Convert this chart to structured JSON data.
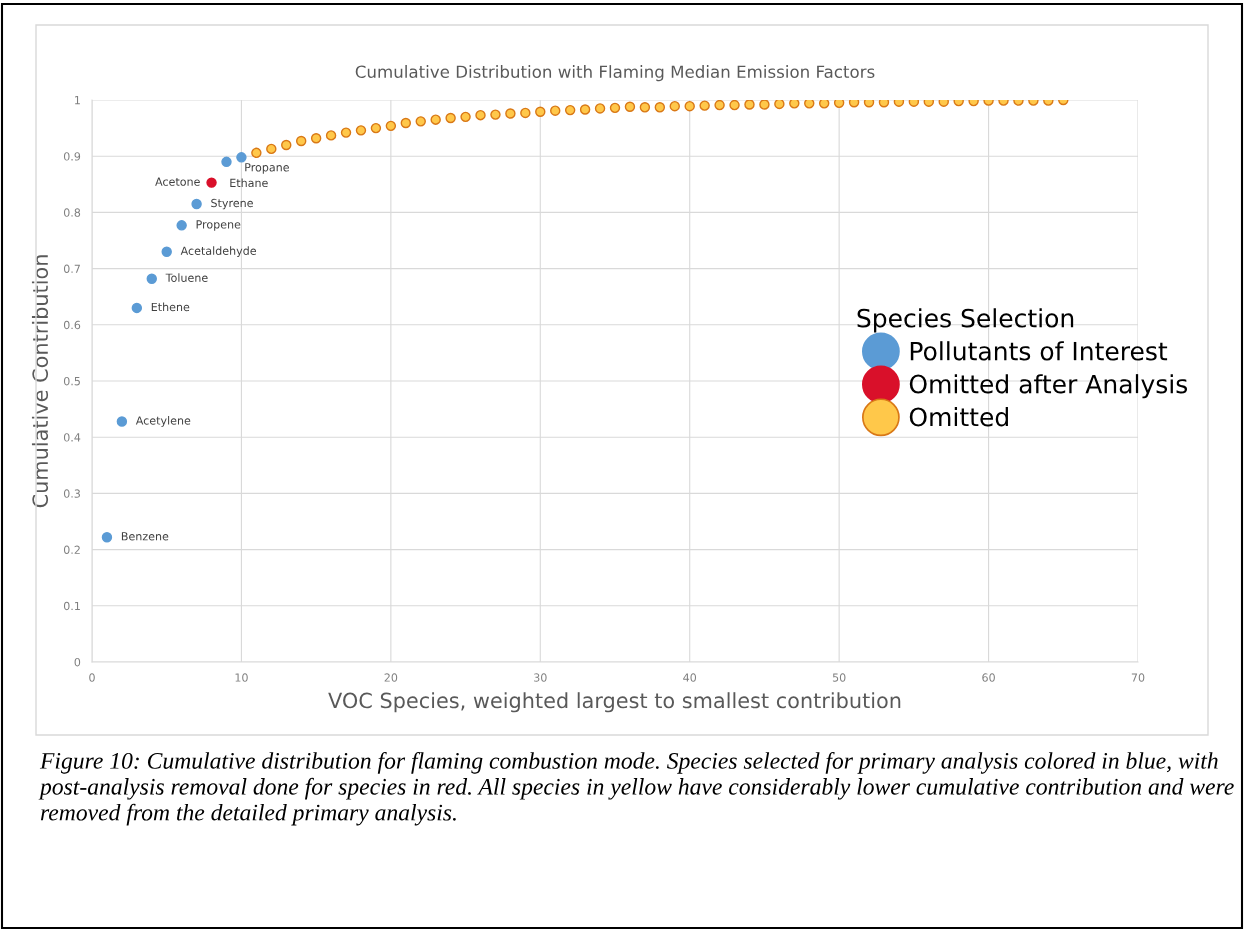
{
  "chart_data": {
    "type": "scatter",
    "title": "Cumulative Distribution with Flaming Median Emission Factors",
    "xlabel": "VOC Species, weighted largest to smallest contribution",
    "ylabel": "Cumulative Contribution",
    "legend_title": "Species Selection",
    "series": [
      {
        "name": "Pollutants of Interest",
        "color": "#5b9bd5",
        "x": [
          1,
          2,
          3,
          4,
          5,
          6,
          7,
          9,
          10
        ],
        "values": [
          0.222,
          0.428,
          0.63,
          0.682,
          0.73,
          0.777,
          0.815,
          0.89,
          0.898
        ]
      },
      {
        "name": "Omitted after Analysis",
        "color": "#d9102a",
        "x": [
          8
        ],
        "values": [
          0.853
        ]
      },
      {
        "name": "Omitted",
        "color": "#ffc84a",
        "x": [
          11,
          12,
          13,
          14,
          15,
          16,
          17,
          18,
          19,
          20,
          21,
          22,
          23,
          24,
          25,
          26,
          27,
          28,
          29,
          30,
          31,
          32,
          33,
          34,
          35,
          36,
          37,
          38,
          39,
          40,
          41,
          42,
          43,
          44,
          45,
          46,
          47,
          48,
          49,
          50,
          51,
          52,
          53,
          54,
          55,
          56,
          57,
          58,
          59,
          60,
          61,
          62,
          63,
          64,
          65
        ],
        "values": [
          0.906,
          0.913,
          0.92,
          0.927,
          0.932,
          0.937,
          0.942,
          0.946,
          0.95,
          0.954,
          0.959,
          0.962,
          0.965,
          0.968,
          0.97,
          0.973,
          0.974,
          0.976,
          0.977,
          0.979,
          0.981,
          0.982,
          0.983,
          0.985,
          0.986,
          0.988,
          0.987,
          0.987,
          0.989,
          0.989,
          0.99,
          0.991,
          0.991,
          0.992,
          0.992,
          0.993,
          0.994,
          0.994,
          0.994,
          0.995,
          0.996,
          0.996,
          0.996,
          0.997,
          0.997,
          0.997,
          0.997,
          0.998,
          0.998,
          0.999,
          0.999,
          0.999,
          0.999,
          0.999,
          1.0
        ]
      }
    ],
    "annotations": [
      {
        "text": "Benzene",
        "x": 1,
        "y": 0.222
      },
      {
        "text": "Acetylene",
        "x": 2,
        "y": 0.428
      },
      {
        "text": "Ethene",
        "x": 3,
        "y": 0.63
      },
      {
        "text": "Toluene",
        "x": 4,
        "y": 0.682
      },
      {
        "text": "Acetaldehyde",
        "x": 5,
        "y": 0.73
      },
      {
        "text": "Propene",
        "x": 6,
        "y": 0.777
      },
      {
        "text": "Styrene",
        "x": 7,
        "y": 0.815
      },
      {
        "text": "Acetone",
        "x": 8,
        "y": 0.853
      },
      {
        "text": "Ethane",
        "x": 9,
        "y": 0.89
      },
      {
        "text": "Propane",
        "x": 10,
        "y": 0.898
      },
      "Figure 10: Cumulative distribution for flaming combustion mode. Species selected for primary analysis colored in blue, with post-analysis removal done for species in red. All species in yellow have considerably lower cumulative contribution and were removed from the detailed primary analysis."
    ],
    "xlim": [
      0,
      70
    ],
    "xticks": [
      0,
      10,
      20,
      30,
      40,
      50,
      60,
      70
    ],
    "ylim": [
      0,
      1
    ],
    "yticks": [
      0,
      0.1,
      0.2,
      0.3,
      0.4,
      0.5,
      0.6,
      0.7,
      0.8,
      0.9,
      1
    ],
    "grid": true,
    "legend": "right",
    "marker": "circle"
  }
}
